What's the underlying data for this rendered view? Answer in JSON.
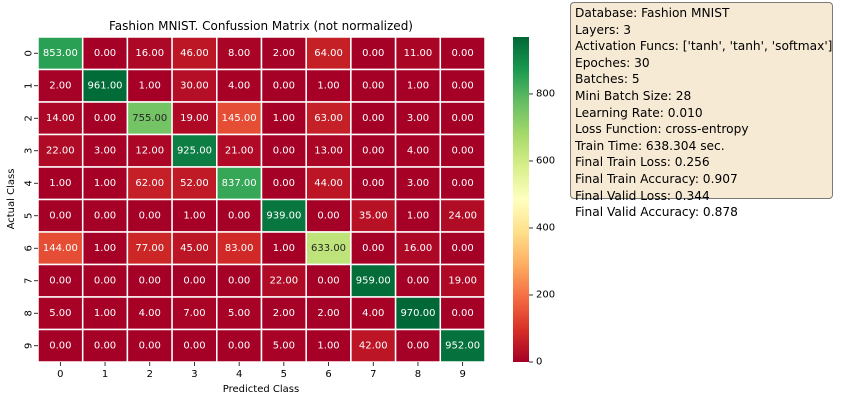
{
  "chart_data": {
    "type": "heatmap",
    "title": "Fashion MNIST. Confussion Matrix (not normalized)",
    "xlabel": "Predicted Class",
    "ylabel": "Actual Class",
    "x_categories": [
      "0",
      "1",
      "2",
      "3",
      "4",
      "5",
      "6",
      "7",
      "8",
      "9"
    ],
    "y_categories": [
      "0",
      "1",
      "2",
      "3",
      "4",
      "5",
      "6",
      "7",
      "8",
      "9"
    ],
    "matrix": [
      [
        853,
        0,
        16,
        46,
        8,
        2,
        64,
        0,
        11,
        0
      ],
      [
        2,
        961,
        1,
        30,
        4,
        0,
        1,
        0,
        1,
        0
      ],
      [
        14,
        0,
        755,
        19,
        145,
        1,
        63,
        0,
        3,
        0
      ],
      [
        22,
        3,
        12,
        925,
        21,
        0,
        13,
        0,
        4,
        0
      ],
      [
        1,
        1,
        62,
        52,
        837,
        0,
        44,
        0,
        3,
        0
      ],
      [
        0,
        0,
        0,
        1,
        0,
        939,
        0,
        35,
        1,
        24
      ],
      [
        144,
        1,
        77,
        45,
        83,
        1,
        633,
        0,
        16,
        0
      ],
      [
        0,
        0,
        0,
        0,
        0,
        22,
        0,
        959,
        0,
        19
      ],
      [
        5,
        1,
        4,
        7,
        5,
        2,
        2,
        4,
        970,
        0
      ],
      [
        0,
        0,
        0,
        0,
        0,
        5,
        1,
        42,
        0,
        952
      ]
    ],
    "value_format_decimals": 2,
    "colormap": "RdYlGn",
    "vmin": 0,
    "vmax": 970,
    "colorbar_ticks": [
      0,
      200,
      400,
      600,
      800
    ],
    "grid": "white cell borders",
    "legend": "colorbar right"
  },
  "info_box": {
    "lines": [
      "Database: Fashion MNIST",
      "Layers: 3",
      "Activation Funcs: ['tanh', 'tanh', 'softmax']",
      "Epoches: 30",
      "Batches: 5",
      "Mini Batch Size: 28",
      "Learning Rate: 0.010",
      "Loss Function: cross-entropy",
      "Train Time: 638.304 sec.",
      "Final Train Loss: 0.256",
      "Final Train Accuracy: 0.907",
      "Final Valid Loss: 0.344",
      "Final Valid Accuracy: 0.878"
    ],
    "background_color": "#f7ead4"
  }
}
